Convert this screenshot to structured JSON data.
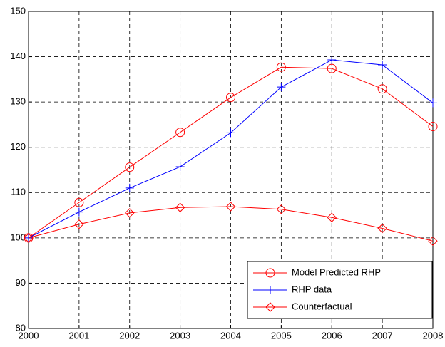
{
  "chart_data": {
    "type": "line",
    "x": [
      2000,
      2001,
      2002,
      2003,
      2004,
      2005,
      2006,
      2007,
      2008
    ],
    "series": [
      {
        "name": "Model Predicted RHP",
        "color": "#ff0000",
        "marker": "o",
        "values": [
          100,
          107.8,
          115.6,
          123.3,
          131,
          137.7,
          137.4,
          132.9,
          124.6
        ]
      },
      {
        "name": "RHP data",
        "color": "#0000ff",
        "marker": "+",
        "values": [
          100,
          105.7,
          111,
          115.7,
          123.2,
          133.3,
          139.3,
          138.2,
          129.8
        ]
      },
      {
        "name": "Counterfactual",
        "color": "#ff0000",
        "marker": "d",
        "values": [
          100,
          103,
          105.5,
          106.7,
          106.9,
          106.3,
          104.5,
          102.1,
          99.3
        ]
      }
    ],
    "xlim": [
      2000,
      2008
    ],
    "xticks": [
      2000,
      2001,
      2002,
      2003,
      2004,
      2005,
      2006,
      2007,
      2008
    ],
    "ylim": [
      80,
      150
    ],
    "yticks": [
      80,
      90,
      100,
      110,
      120,
      130,
      140,
      150
    ],
    "grid": true,
    "legend": "lower right"
  }
}
